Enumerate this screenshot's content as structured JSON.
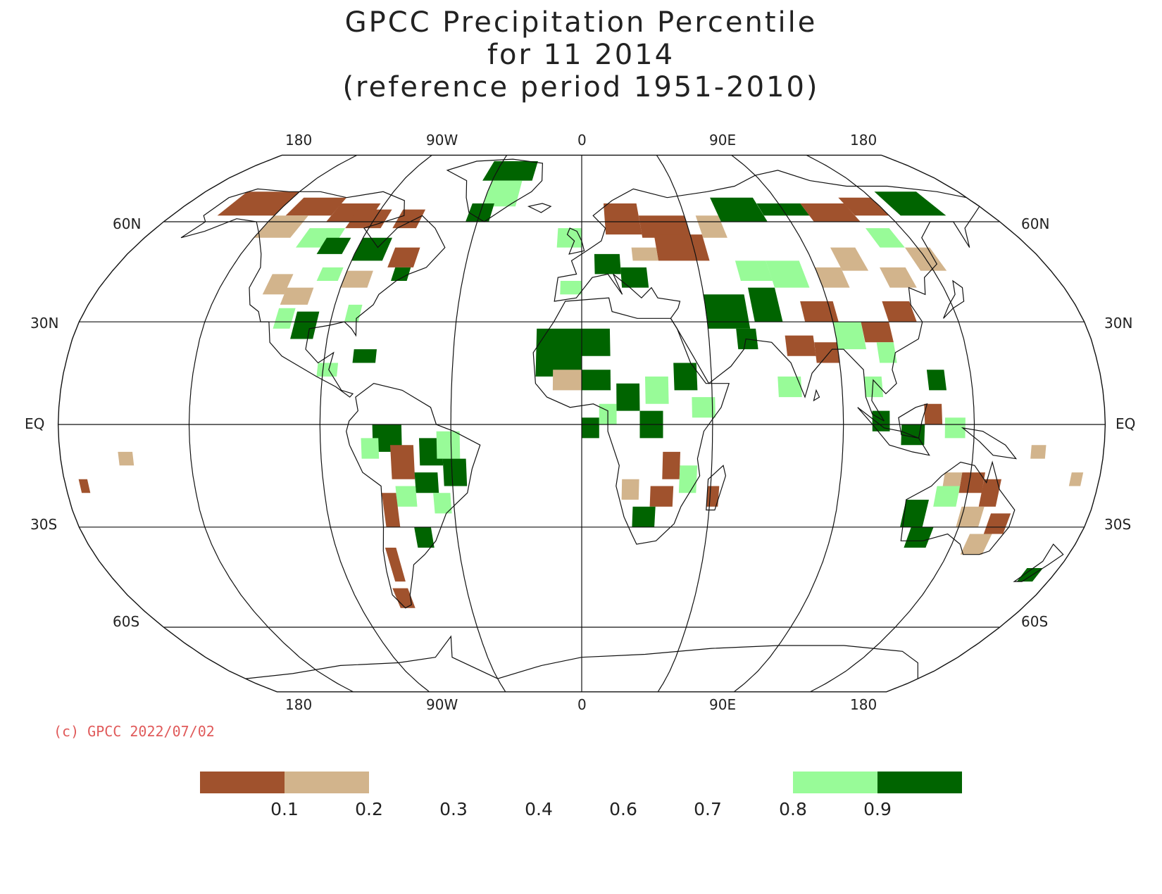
{
  "title": {
    "line1": "GPCC Precipitation Percentile",
    "line2": "for 11 2014",
    "line3": "(reference period 1951-2010)"
  },
  "longitude_labels": [
    "180",
    "90W",
    "0",
    "90E",
    "180"
  ],
  "latitude_labels": [
    "60N",
    "30N",
    "EQ",
    "30S",
    "60S"
  ],
  "copyright": "(c) GPCC 2022/07/02",
  "colorbar": {
    "boxes": [
      {
        "color": "#a0522d",
        "range": "< 0.1"
      },
      {
        "color": "#d2b48c",
        "range": "0.1 - 0.2"
      },
      {
        "color": "#98fb98",
        "range": "0.8 - 0.9"
      },
      {
        "color": "#006400",
        "range": "> 0.9"
      }
    ],
    "labels": [
      "0.1",
      "0.2",
      "0.3",
      "0.4",
      "0.6",
      "0.7",
      "0.8",
      "0.9"
    ]
  },
  "colors": {
    "very_dry": "#a0522d",
    "dry": "#d2b48c",
    "wet": "#98fb98",
    "very_wet": "#006400"
  }
}
